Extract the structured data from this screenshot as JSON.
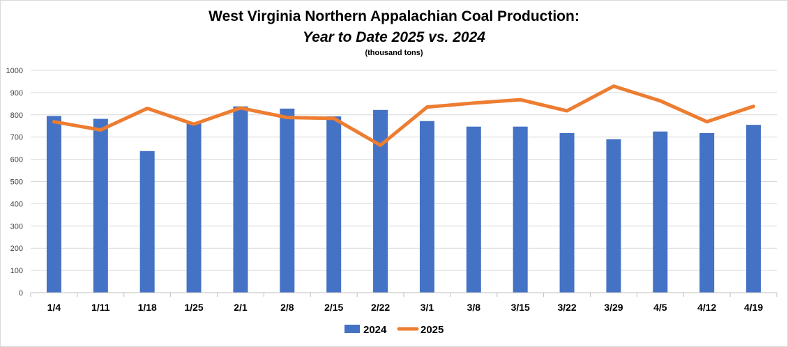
{
  "chart_data": {
    "type": "bar",
    "title": "West Virginia Northern Appalachian Coal Production:",
    "subtitle_italic": "Year to Date 2025 vs. 2024",
    "units": "(thousand tons)",
    "categories": [
      "1/4",
      "1/11",
      "1/18",
      "1/25",
      "2/1",
      "2/8",
      "2/15",
      "2/22",
      "3/1",
      "3/8",
      "3/15",
      "3/22",
      "3/29",
      "4/5",
      "4/12",
      "4/19"
    ],
    "series": [
      {
        "name": "2024",
        "type": "bar",
        "color": "#4472c4",
        "values": [
          795,
          782,
          637,
          765,
          838,
          828,
          793,
          822,
          772,
          747,
          747,
          718,
          690,
          725,
          718,
          755
        ]
      },
      {
        "name": "2025",
        "type": "line",
        "color": "#ed7d31",
        "values": [
          769,
          732,
          829,
          758,
          831,
          788,
          784,
          663,
          835,
          853,
          868,
          818,
          929,
          863,
          769,
          838
        ]
      }
    ],
    "ylim": [
      0,
      1000
    ],
    "yticks": [
      "0",
      "100",
      "200",
      "300",
      "400",
      "500",
      "600",
      "700",
      "800",
      "900",
      "1000"
    ],
    "grid": true,
    "legend_position": "bottom-center"
  }
}
